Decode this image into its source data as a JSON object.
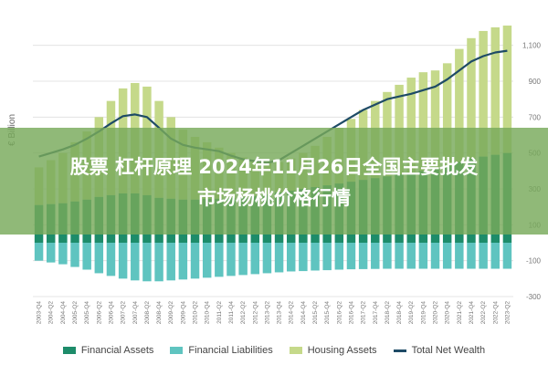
{
  "banner": {
    "line1": "股票 杠杆原理 2024年11月26日全国主要批发",
    "line2": "市场杨桃价格行情"
  },
  "colors": {
    "financial_assets": "#1d8c6a",
    "financial_liabilities": "#5fc4c0",
    "housing_assets": "#c5d98a",
    "total_net_wealth": "#1e4b66",
    "grid": "#dddddd",
    "banner": "#78aa5a"
  },
  "chart_data": {
    "type": "bar",
    "ylabel": "€ Billion",
    "ylim": [
      -300,
      1200
    ],
    "yticks": [
      -300,
      -100,
      100,
      300,
      500,
      700,
      900,
      1100
    ],
    "ytick_labels": [
      "-300",
      "-100",
      "100",
      "300",
      "500",
      "700",
      "900",
      "1,100"
    ],
    "categories": [
      "2003-Q4",
      "2004-Q2",
      "2004-Q4",
      "2005-Q2",
      "2005-Q4",
      "2006-Q2",
      "2006-Q4",
      "2007-Q2",
      "2007-Q4",
      "2008-Q2",
      "2008-Q4",
      "2009-Q2",
      "2009-Q4",
      "2010-Q2",
      "2010-Q4",
      "2011-Q2",
      "2011-Q4",
      "2012-Q2",
      "2012-Q4",
      "2013-Q2",
      "2013-Q4",
      "2014-Q2",
      "2014-Q4",
      "2015-Q2",
      "2015-Q4",
      "2016-Q2",
      "2016-Q4",
      "2017-Q2",
      "2017-Q4",
      "2018-Q2",
      "2018-Q4",
      "2019-Q2",
      "2019-Q4",
      "2020-Q2",
      "2020-Q4",
      "2021-Q2",
      "2021-Q4",
      "2022-Q2",
      "2022-Q4",
      "2023-Q2"
    ],
    "series": [
      {
        "name": "Financial Assets",
        "kind": "bar",
        "values": [
          210,
          215,
          220,
          230,
          240,
          255,
          265,
          275,
          275,
          265,
          250,
          245,
          240,
          240,
          245,
          245,
          250,
          255,
          260,
          270,
          280,
          290,
          300,
          310,
          320,
          330,
          340,
          350,
          360,
          370,
          380,
          390,
          400,
          410,
          430,
          450,
          470,
          480,
          490,
          500
        ]
      },
      {
        "name": "Financial Liabilities",
        "kind": "bar",
        "values": [
          -100,
          -110,
          -120,
          -135,
          -150,
          -170,
          -185,
          -200,
          -210,
          -215,
          -215,
          -210,
          -205,
          -200,
          -195,
          -190,
          -185,
          -180,
          -175,
          -170,
          -165,
          -160,
          -158,
          -155,
          -153,
          -150,
          -148,
          -147,
          -146,
          -145,
          -145,
          -145,
          -145,
          -145,
          -145,
          -145,
          -145,
          -145,
          -145,
          -145
        ]
      },
      {
        "name": "Housing Assets",
        "kind": "bar",
        "values": [
          420,
          460,
          500,
          560,
          620,
          700,
          790,
          860,
          890,
          870,
          790,
          700,
          630,
          590,
          560,
          530,
          500,
          475,
          455,
          445,
          450,
          470,
          500,
          540,
          590,
          640,
          690,
          740,
          790,
          840,
          880,
          920,
          950,
          960,
          1000,
          1080,
          1140,
          1180,
          1200,
          1210
        ]
      },
      {
        "name": "Total Net Wealth",
        "kind": "line",
        "values": [
          480,
          500,
          520,
          545,
          580,
          620,
          665,
          705,
          715,
          700,
          640,
          580,
          545,
          530,
          520,
          510,
          485,
          465,
          455,
          445,
          460,
          500,
          540,
          580,
          620,
          660,
          700,
          740,
          770,
          800,
          815,
          830,
          850,
          870,
          910,
          960,
          1010,
          1040,
          1060,
          1070
        ]
      }
    ],
    "legend_position": "bottom",
    "grid": true
  }
}
